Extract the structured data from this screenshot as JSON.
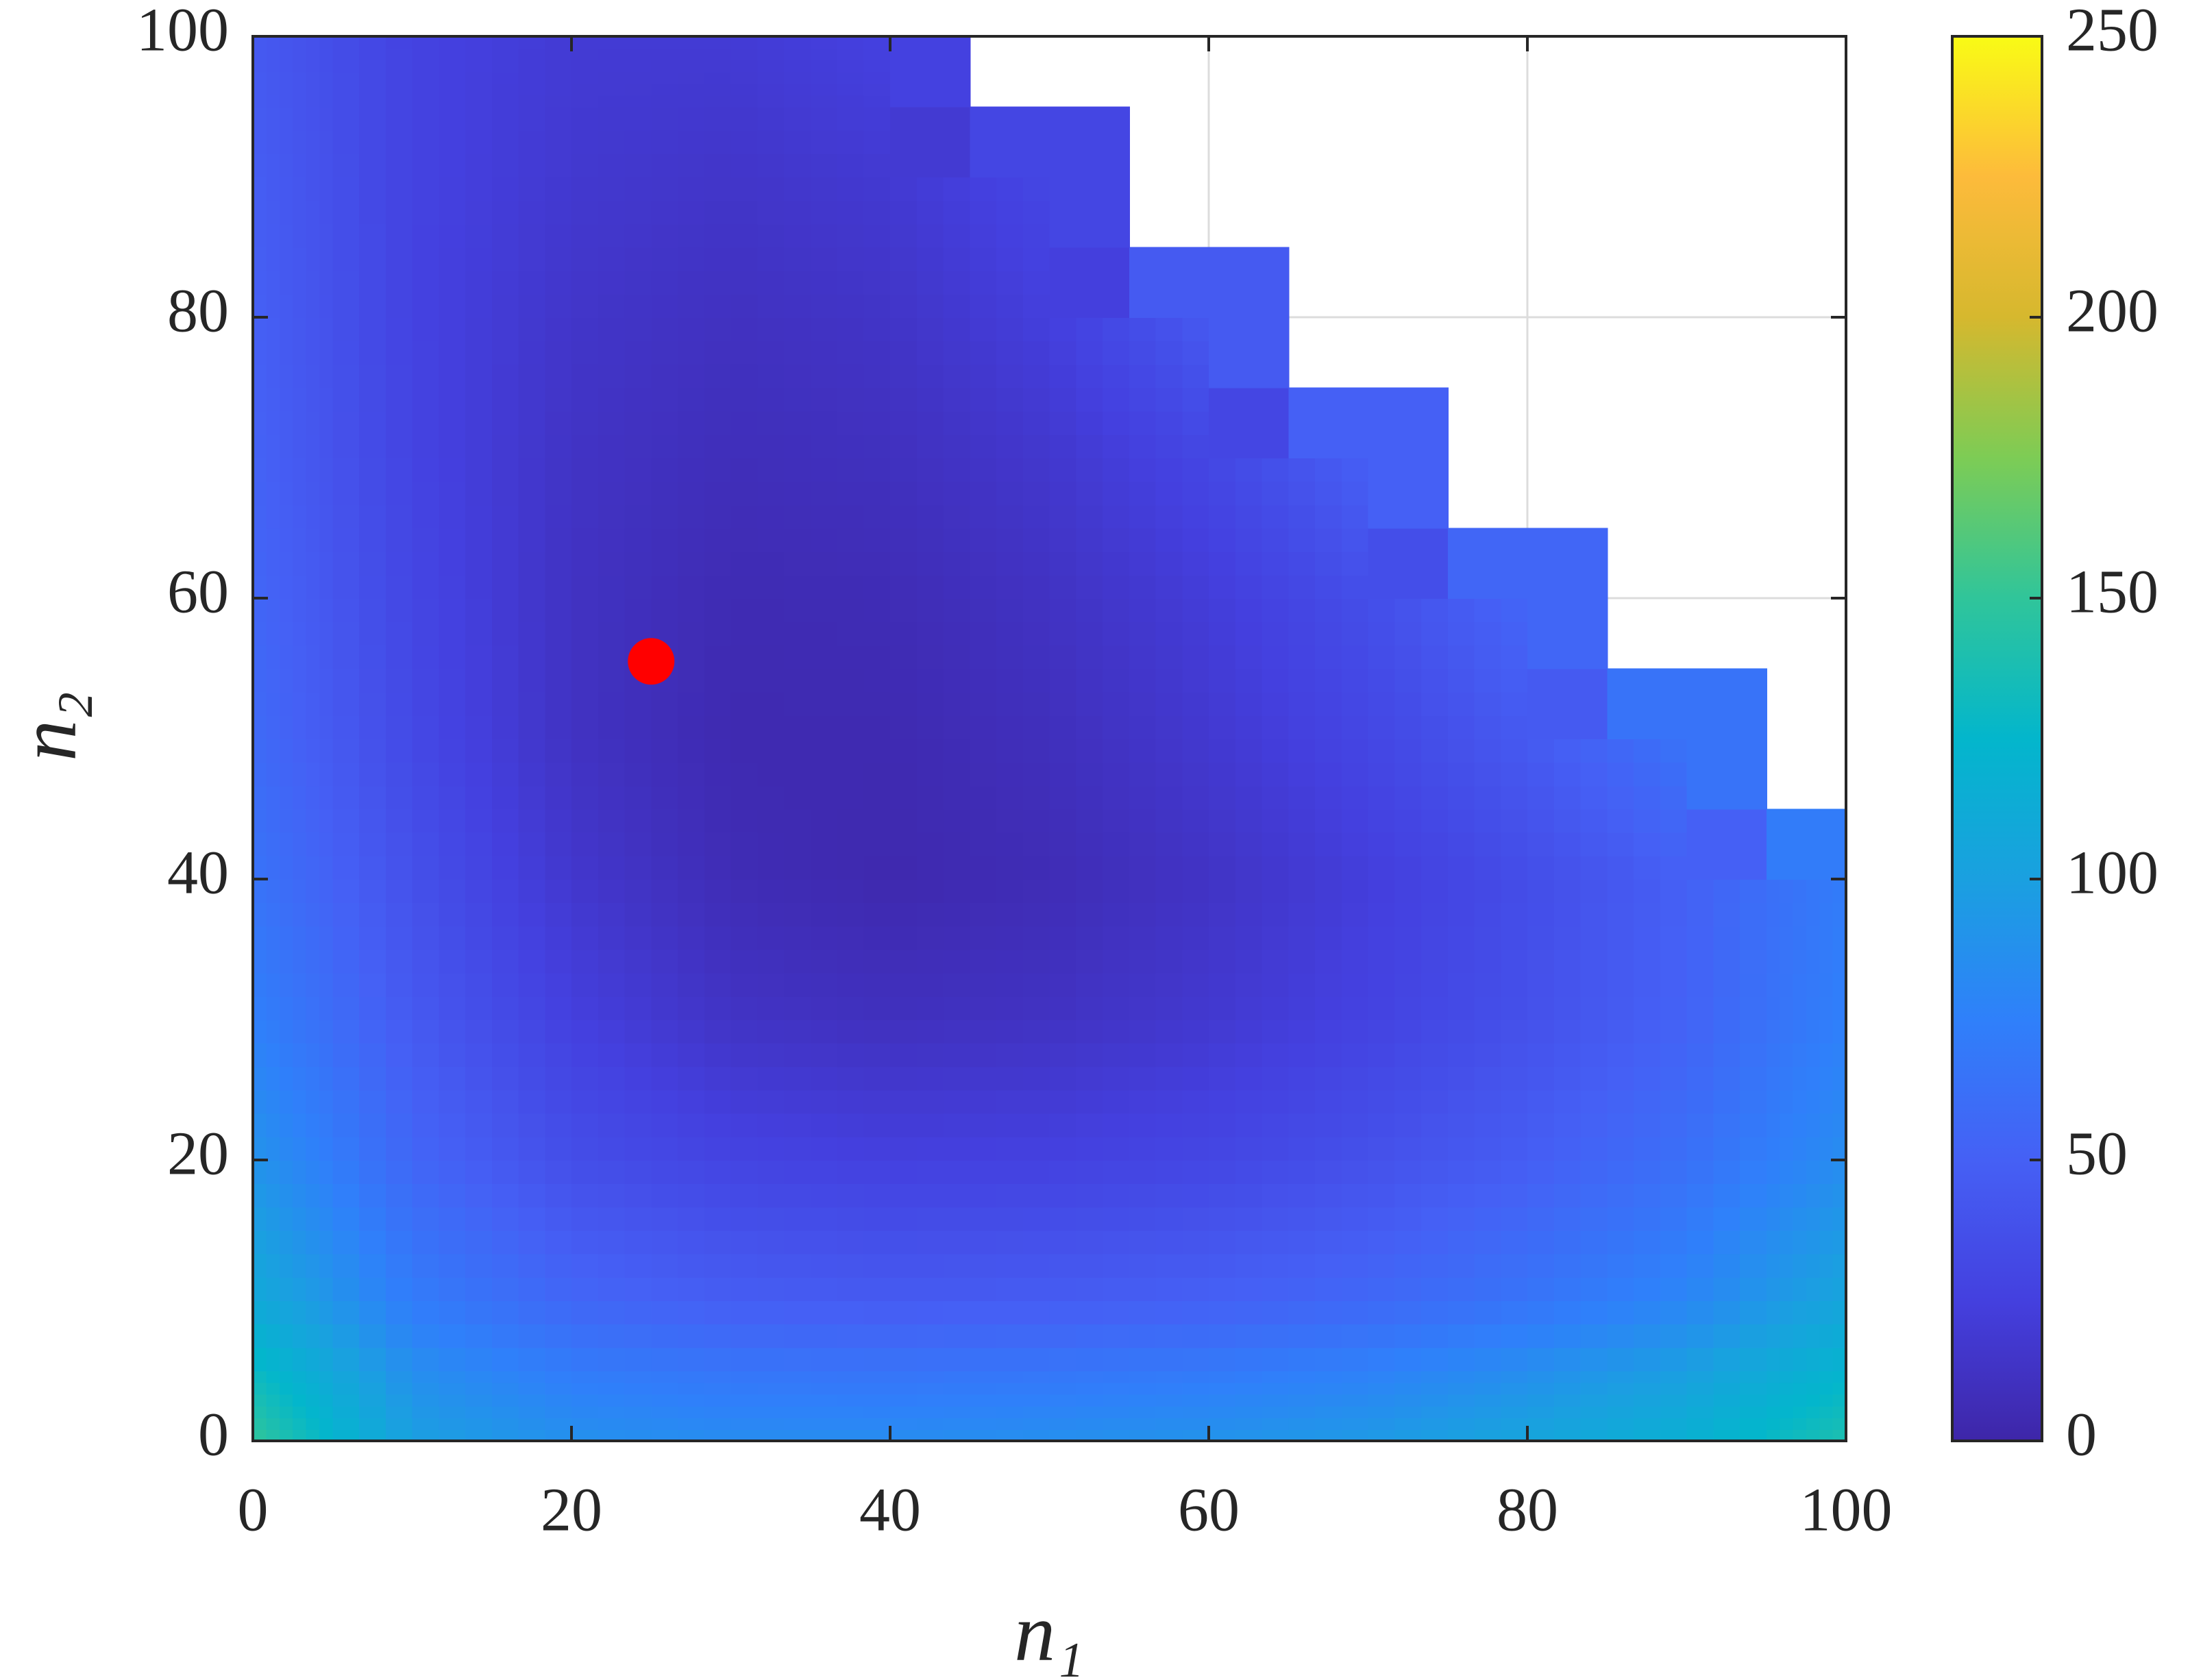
{
  "chart_data": {
    "type": "contour",
    "x": [
      0,
      10,
      20,
      30,
      40,
      50,
      60,
      70,
      80,
      90,
      100
    ],
    "y": [
      0,
      10,
      20,
      30,
      40,
      50,
      60,
      70,
      80,
      90,
      100
    ],
    "z": [
      [
        150,
        100,
        88,
        85,
        85,
        87,
        90,
        95,
        105,
        118,
        140
      ],
      [
        110,
        72,
        55,
        48,
        46,
        47,
        50,
        56,
        66,
        80,
        105
      ],
      [
        90,
        55,
        36,
        28,
        25,
        26,
        30,
        38,
        48,
        62,
        85
      ],
      [
        75,
        45,
        25,
        13,
        10,
        12,
        18,
        27,
        38,
        52,
        75
      ],
      [
        65,
        38,
        17,
        6,
        3,
        6,
        13,
        23,
        35,
        50,
        72
      ],
      [
        58,
        32,
        12,
        4,
        4,
        9,
        18,
        30,
        45,
        65,
        null
      ],
      [
        55,
        30,
        12,
        5,
        6,
        12,
        22,
        36,
        55,
        null,
        null
      ],
      [
        52,
        28,
        13,
        8,
        10,
        17,
        30,
        50,
        null,
        null,
        null
      ],
      [
        50,
        27,
        15,
        11,
        14,
        24,
        45,
        null,
        null,
        null,
        null
      ],
      [
        48,
        27,
        18,
        15,
        19,
        30,
        null,
        null,
        null,
        null,
        null
      ],
      [
        45,
        27,
        20,
        20,
        26,
        null,
        null,
        null,
        null,
        null,
        null
      ]
    ],
    "xlim": [
      0,
      100
    ],
    "ylim": [
      0,
      100
    ],
    "xticks": [
      0,
      20,
      40,
      60,
      80,
      100
    ],
    "yticks": [
      0,
      20,
      40,
      60,
      80,
      100
    ],
    "xlabel": "n₁",
    "ylabel": "n₂",
    "grid": true,
    "colormap": [
      "#3e26a8",
      "#4440df",
      "#4560f5",
      "#2f80fa",
      "#1aa0e0",
      "#03b6cc",
      "#30c59a",
      "#7dcc55",
      "#d6b82e",
      "#fdbb3b",
      "#f9fb15"
    ],
    "clim": [
      0,
      250
    ],
    "colorbar_ticks": [
      0,
      50,
      100,
      150,
      200,
      250
    ],
    "marker": {
      "x": 25,
      "y": 55.5,
      "color": "#ff0000"
    }
  }
}
